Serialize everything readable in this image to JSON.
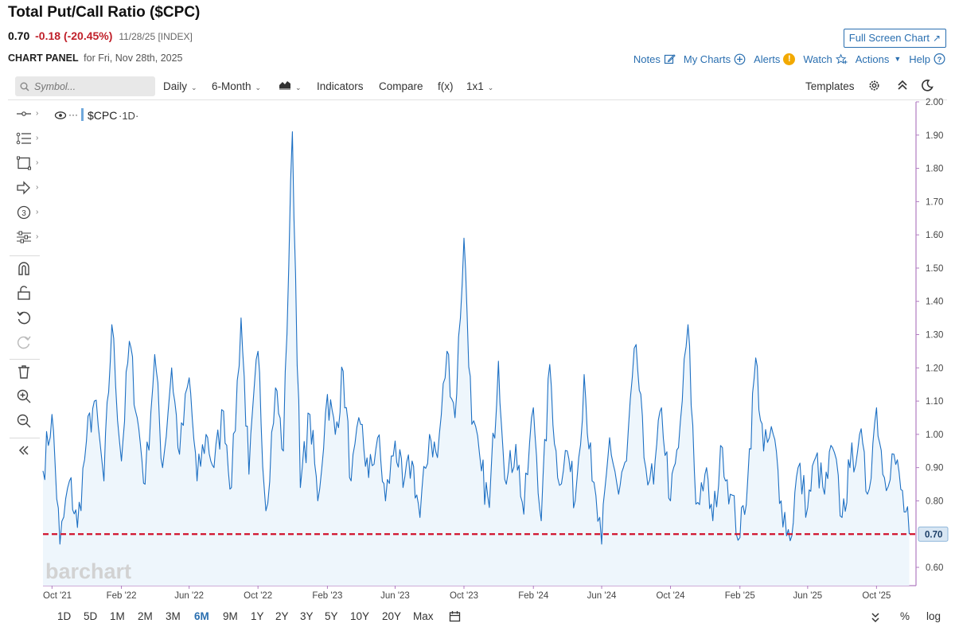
{
  "header": {
    "title": "Total Put/Call Ratio ($CPC)",
    "last": "0.70",
    "change": "-0.18 (-20.45%)",
    "meta": "11/28/25 [INDEX]",
    "panel_label": "CHART PANEL",
    "panel_date": "for Fri, Nov 28th, 2025",
    "fullscreen_label": "Full Screen Chart"
  },
  "topnav": {
    "notes": "Notes",
    "my_charts": "My Charts",
    "alerts": "Alerts",
    "alerts_badge": "!",
    "watch": "Watch",
    "actions": "Actions",
    "help": "Help"
  },
  "toolbar": {
    "search_placeholder": "Symbol...",
    "period": "Daily",
    "range": "6-Month",
    "indicators": "Indicators",
    "compare": "Compare",
    "fx": "f(x)",
    "layout": "1x1",
    "templates": "Templates"
  },
  "sidebar_icons": [
    "crosshair-icon",
    "fibonacci-icon",
    "rectangle-icon",
    "arrow-icon",
    "counter-icon",
    "pattern-icon",
    "magnet-icon",
    "unlock-icon",
    "undo-icon",
    "redo-icon",
    "trash-icon",
    "zoom-in-icon",
    "zoom-out-icon",
    "collapse-icon"
  ],
  "counter_label": "3",
  "legend": {
    "symbol": "$CPC",
    "interval": "·1D·"
  },
  "watermark": "barchart",
  "timeframes": [
    "1D",
    "5D",
    "1M",
    "2M",
    "3M",
    "6M",
    "9M",
    "1Y",
    "2Y",
    "3Y",
    "5Y",
    "10Y",
    "20Y",
    "Max"
  ],
  "active_timeframe": "6M",
  "scale_options": {
    "percent": "%",
    "log": "log"
  },
  "colors": {
    "line": "#1c6fc3",
    "fill": "#eef6fc",
    "reference": "#d1112b",
    "axis": "#b07cc0",
    "link": "#2a6fb0"
  },
  "chart_data": {
    "type": "line",
    "series": [
      {
        "x": [
          "2021-09-15",
          "2021-10-01",
          "2021-10-15",
          "2021-11-01",
          "2021-11-15",
          "2021-12-01",
          "2021-12-15",
          "2022-01-01",
          "2022-01-15",
          "2022-02-01",
          "2022-02-15",
          "2022-03-01",
          "2022-03-15",
          "2022-04-01",
          "2022-04-15",
          "2022-05-01",
          "2022-05-15",
          "2022-06-01",
          "2022-06-15",
          "2022-07-01",
          "2022-07-15",
          "2022-08-01",
          "2022-08-15",
          "2022-09-01",
          "2022-09-15",
          "2022-10-01",
          "2022-10-15",
          "2022-11-01",
          "2022-11-15",
          "2022-12-01",
          "2022-12-15",
          "2023-01-01",
          "2023-01-15",
          "2023-02-01",
          "2023-02-15",
          "2023-03-01",
          "2023-03-15",
          "2023-04-01",
          "2023-04-15",
          "2023-05-01",
          "2023-05-15",
          "2023-06-01",
          "2023-06-15",
          "2023-07-01",
          "2023-07-15",
          "2023-08-01",
          "2023-08-15",
          "2023-09-01",
          "2023-09-15",
          "2023-10-01",
          "2023-10-15",
          "2023-11-01",
          "2023-11-15",
          "2023-12-01",
          "2023-12-15",
          "2024-01-01",
          "2024-01-15",
          "2024-02-01",
          "2024-02-15",
          "2024-03-01",
          "2024-03-15",
          "2024-04-01",
          "2024-04-15",
          "2024-05-01",
          "2024-05-15",
          "2024-06-01",
          "2024-06-15",
          "2024-07-01",
          "2024-07-15",
          "2024-08-01",
          "2024-08-15",
          "2024-09-01",
          "2024-09-15",
          "2024-10-01",
          "2024-10-15",
          "2024-11-01",
          "2024-11-15",
          "2024-12-01",
          "2024-12-15",
          "2025-01-01",
          "2025-01-15",
          "2025-02-01",
          "2025-02-15",
          "2025-03-01",
          "2025-03-15",
          "2025-04-01",
          "2025-04-15",
          "2025-05-01",
          "2025-05-15",
          "2025-06-01",
          "2025-06-15",
          "2025-07-01",
          "2025-07-15",
          "2025-08-01",
          "2025-08-15",
          "2025-09-01",
          "2025-09-15",
          "2025-10-01",
          "2025-10-15",
          "2025-11-01",
          "2025-11-28"
        ],
        "y": [
          0.89,
          1.06,
          0.67,
          0.86,
          0.72,
          0.98,
          1.1,
          0.86,
          1.33,
          0.92,
          1.28,
          1.05,
          0.85,
          1.24,
          0.9,
          1.2,
          0.94,
          1.17,
          0.86,
          1.0,
          0.9,
          1.07,
          0.84,
          1.35,
          0.88,
          1.25,
          0.77,
          1.14,
          0.95,
          1.91,
          0.84,
          1.06,
          0.8,
          1.12,
          1.0,
          1.19,
          0.86,
          1.03,
          0.87,
          0.99,
          0.8,
          0.98,
          0.84,
          0.92,
          0.75,
          1.0,
          0.93,
          1.25,
          1.05,
          1.59,
          1.03,
          0.89,
          0.78,
          1.22,
          0.85,
          0.97,
          0.76,
          1.08,
          0.74,
          1.21,
          0.87,
          0.95,
          0.8,
          1.18,
          0.86,
          0.67,
          0.99,
          0.82,
          0.92,
          1.27,
          0.93,
          0.85,
          1.08,
          0.8,
          0.96,
          1.33,
          0.79,
          0.88,
          0.74,
          0.96,
          0.82,
          0.69,
          0.87,
          1.23,
          0.95,
          1.0,
          0.8,
          0.68,
          0.9,
          0.78,
          0.93,
          0.82,
          0.96,
          0.75,
          0.9,
          1.0,
          0.82,
          1.08,
          0.87,
          0.94,
          0.7
        ]
      }
    ],
    "x_ticks": [
      "Oct '21",
      "Feb '22",
      "Jun '22",
      "Oct '22",
      "Feb '23",
      "Jun '23",
      "Oct '23",
      "Feb '24",
      "Jun '24",
      "Oct '24",
      "Feb '25",
      "Jun '25",
      "Oct '25"
    ],
    "x_tick_dates": [
      "2021-10-01",
      "2022-02-01",
      "2022-06-01",
      "2022-10-01",
      "2023-02-01",
      "2023-06-01",
      "2023-10-01",
      "2024-02-01",
      "2024-06-01",
      "2024-10-01",
      "2025-02-01",
      "2025-06-01",
      "2025-10-01"
    ],
    "y_ticks": [
      0.6,
      0.7,
      0.8,
      0.9,
      1.0,
      1.1,
      1.2,
      1.3,
      1.4,
      1.5,
      1.6,
      1.7,
      1.8,
      1.9,
      2.0
    ],
    "ylim": [
      0.545,
      2.0
    ],
    "xlim": [
      "2021-09-15",
      "2025-12-10"
    ],
    "reference_line": {
      "value": 0.7,
      "label": "0.70",
      "style": "dashed"
    },
    "grid": false
  }
}
